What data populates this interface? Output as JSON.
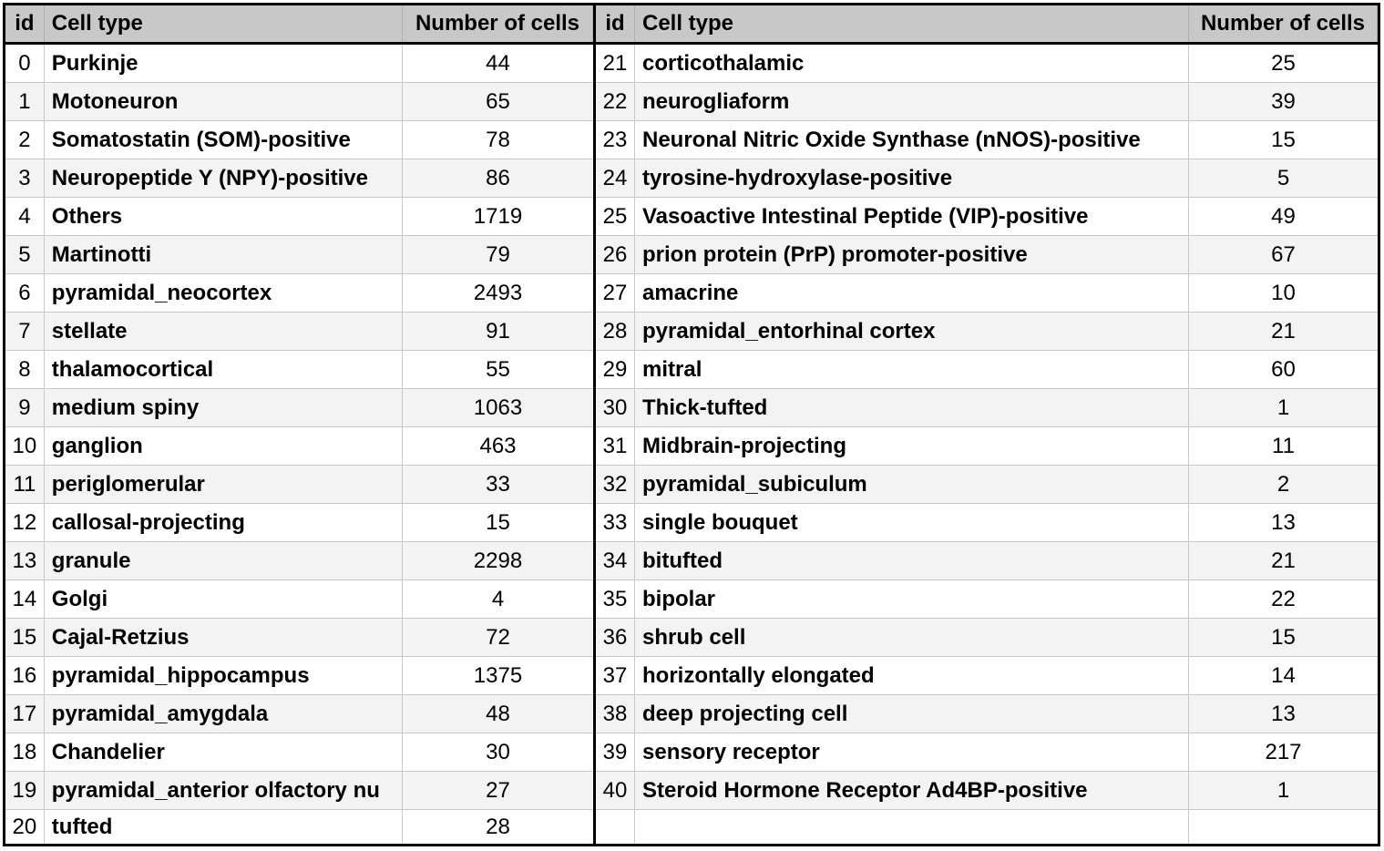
{
  "headers": {
    "id": "id",
    "cell_type": "Cell type",
    "count": "Number of cells"
  },
  "left_rows": [
    {
      "id": "0",
      "type": "Purkinje",
      "count": "44"
    },
    {
      "id": "1",
      "type": "Motoneuron",
      "count": "65"
    },
    {
      "id": "2",
      "type": "Somatostatin (SOM)-positive",
      "count": "78"
    },
    {
      "id": "3",
      "type": "Neuropeptide Y (NPY)-positive",
      "count": "86"
    },
    {
      "id": "4",
      "type": "Others",
      "count": "1719"
    },
    {
      "id": "5",
      "type": "Martinotti",
      "count": "79"
    },
    {
      "id": "6",
      "type": "pyramidal_neocortex",
      "count": "2493"
    },
    {
      "id": "7",
      "type": "stellate",
      "count": "91"
    },
    {
      "id": "8",
      "type": "thalamocortical",
      "count": "55"
    },
    {
      "id": "9",
      "type": "medium spiny",
      "count": "1063"
    },
    {
      "id": "10",
      "type": "ganglion",
      "count": "463"
    },
    {
      "id": "11",
      "type": "periglomerular",
      "count": "33"
    },
    {
      "id": "12",
      "type": "callosal-projecting",
      "count": "15"
    },
    {
      "id": "13",
      "type": "granule",
      "count": "2298"
    },
    {
      "id": "14",
      "type": "Golgi",
      "count": "4"
    },
    {
      "id": "15",
      "type": "Cajal-Retzius",
      "count": "72"
    },
    {
      "id": "16",
      "type": "pyramidal_hippocampus",
      "count": "1375"
    },
    {
      "id": "17",
      "type": "pyramidal_amygdala",
      "count": "48"
    },
    {
      "id": "18",
      "type": "Chandelier",
      "count": "30"
    },
    {
      "id": "19",
      "type": "pyramidal_anterior olfactory nu",
      "count": "27"
    },
    {
      "id": "20",
      "type": "tufted",
      "count": "28"
    }
  ],
  "right_rows": [
    {
      "id": "21",
      "type": "corticothalamic",
      "count": "25"
    },
    {
      "id": "22",
      "type": "neurogliaform",
      "count": "39"
    },
    {
      "id": "23",
      "type": "Neuronal Nitric Oxide Synthase (nNOS)-positive",
      "count": "15"
    },
    {
      "id": "24",
      "type": "tyrosine-hydroxylase-positive",
      "count": "5"
    },
    {
      "id": "25",
      "type": "Vasoactive Intestinal Peptide (VIP)-positive",
      "count": "49"
    },
    {
      "id": "26",
      "type": "prion protein (PrP) promoter-positive",
      "count": "67"
    },
    {
      "id": "27",
      "type": "amacrine",
      "count": "10"
    },
    {
      "id": "28",
      "type": "pyramidal_entorhinal cortex",
      "count": "21"
    },
    {
      "id": "29",
      "type": "mitral",
      "count": "60"
    },
    {
      "id": "30",
      "type": "Thick-tufted",
      "count": "1"
    },
    {
      "id": "31",
      "type": "Midbrain-projecting",
      "count": "11"
    },
    {
      "id": "32",
      "type": "pyramidal_subiculum",
      "count": "2"
    },
    {
      "id": "33",
      "type": "single bouquet",
      "count": "13"
    },
    {
      "id": "34",
      "type": "bitufted",
      "count": "21"
    },
    {
      "id": "35",
      "type": "bipolar",
      "count": "22"
    },
    {
      "id": "36",
      "type": "shrub cell",
      "count": "15"
    },
    {
      "id": "37",
      "type": "horizontally elongated",
      "count": "14"
    },
    {
      "id": "38",
      "type": "deep projecting cell",
      "count": "13"
    },
    {
      "id": "39",
      "type": "sensory receptor",
      "count": "217"
    },
    {
      "id": "40",
      "type": "Steroid Hormone Receptor Ad4BP-positive",
      "count": "1"
    },
    {
      "id": "",
      "type": "",
      "count": ""
    }
  ]
}
